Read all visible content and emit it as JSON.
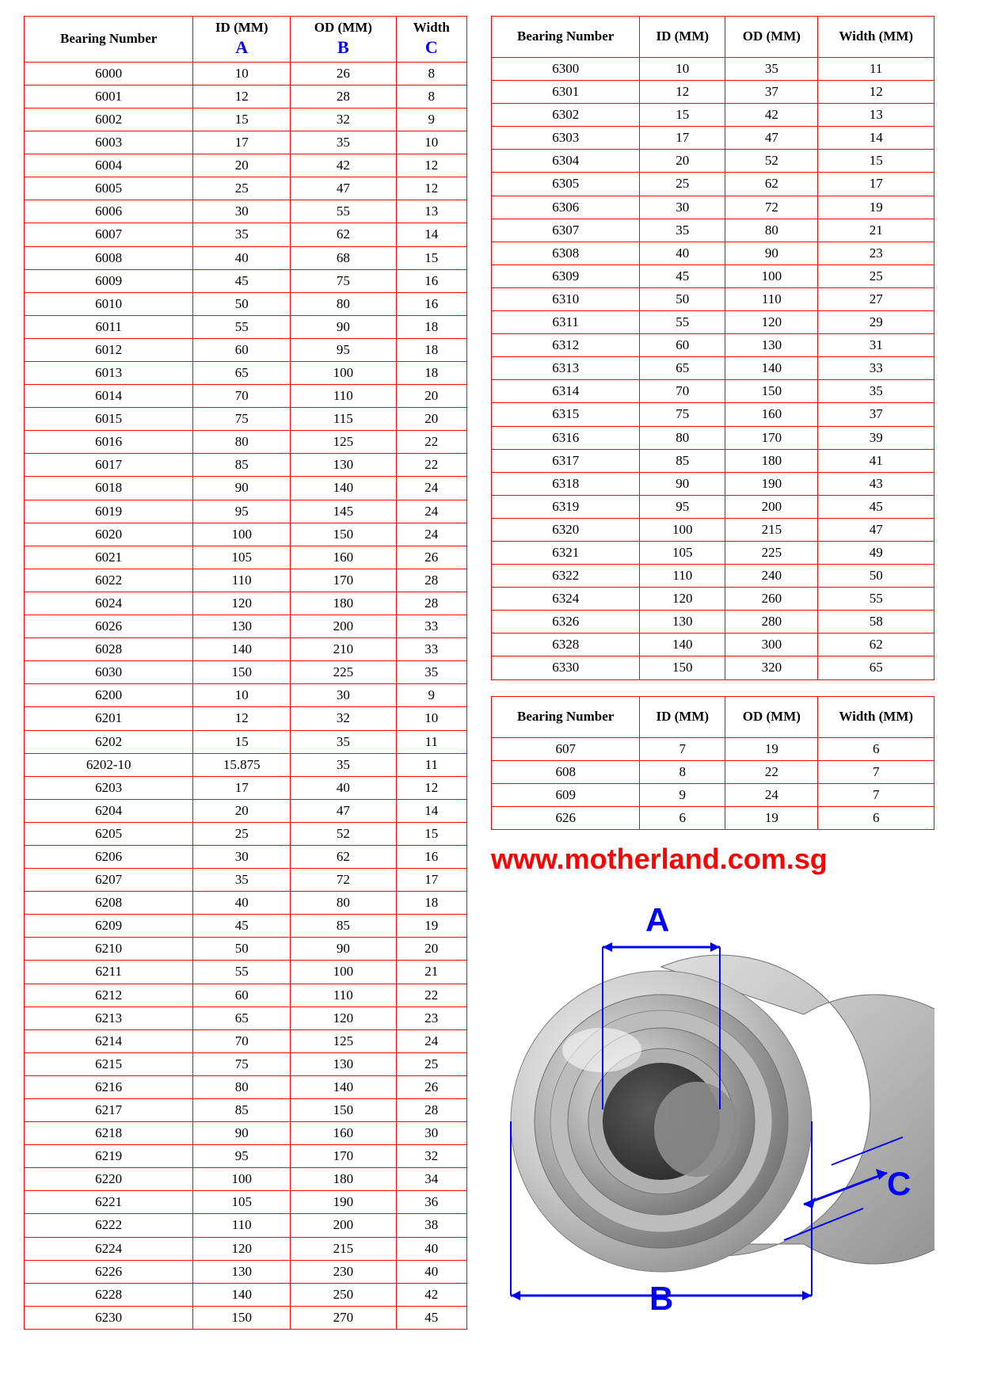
{
  "colors": {
    "table_border": "#ff0000",
    "text": "#000000",
    "accent_blue": "#0000ff",
    "website_red": "#ff0000",
    "background": "#ffffff",
    "bearing_outer": "#c9c9c9",
    "bearing_mid": "#a3a3a3",
    "bearing_inner": "#6f6f6f",
    "bearing_hole": "#3a3a3a",
    "bearing_hilite": "#f2f2f2"
  },
  "headers_main": {
    "c1": "Bearing Number",
    "c2": "ID (MM)",
    "c2_sub": "A",
    "c3": "OD (MM)",
    "c3_sub": "B",
    "c4": "Width",
    "c4_sub": "C"
  },
  "headers_simple": {
    "c1": "Bearing Number",
    "c2": "ID (MM)",
    "c3": "OD (MM)",
    "c4": "Width (MM)"
  },
  "website": "www.motherland.com.sg",
  "diagram_labels": {
    "A": "A",
    "B": "B",
    "C": "C"
  },
  "table_left": {
    "columns": [
      "Bearing Number",
      "ID (MM)",
      "OD (MM)",
      "Width"
    ],
    "rows": [
      [
        "6000",
        "10",
        "26",
        "8"
      ],
      [
        "6001",
        "12",
        "28",
        "8"
      ],
      [
        "6002",
        "15",
        "32",
        "9"
      ],
      [
        "6003",
        "17",
        "35",
        "10"
      ],
      [
        "6004",
        "20",
        "42",
        "12"
      ],
      [
        "6005",
        "25",
        "47",
        "12"
      ],
      [
        "6006",
        "30",
        "55",
        "13"
      ],
      [
        "6007",
        "35",
        "62",
        "14"
      ],
      [
        "6008",
        "40",
        "68",
        "15"
      ],
      [
        "6009",
        "45",
        "75",
        "16"
      ],
      [
        "6010",
        "50",
        "80",
        "16"
      ],
      [
        "6011",
        "55",
        "90",
        "18"
      ],
      [
        "6012",
        "60",
        "95",
        "18"
      ],
      [
        "6013",
        "65",
        "100",
        "18"
      ],
      [
        "6014",
        "70",
        "110",
        "20"
      ],
      [
        "6015",
        "75",
        "115",
        "20"
      ],
      [
        "6016",
        "80",
        "125",
        "22"
      ],
      [
        "6017",
        "85",
        "130",
        "22"
      ],
      [
        "6018",
        "90",
        "140",
        "24"
      ],
      [
        "6019",
        "95",
        "145",
        "24"
      ],
      [
        "6020",
        "100",
        "150",
        "24"
      ],
      [
        "6021",
        "105",
        "160",
        "26"
      ],
      [
        "6022",
        "110",
        "170",
        "28"
      ],
      [
        "6024",
        "120",
        "180",
        "28"
      ],
      [
        "6026",
        "130",
        "200",
        "33"
      ],
      [
        "6028",
        "140",
        "210",
        "33"
      ],
      [
        "6030",
        "150",
        "225",
        "35"
      ],
      [
        "6200",
        "10",
        "30",
        "9"
      ],
      [
        "6201",
        "12",
        "32",
        "10"
      ],
      [
        "6202",
        "15",
        "35",
        "11"
      ],
      [
        "6202-10",
        "15.875",
        "35",
        "11"
      ],
      [
        "6203",
        "17",
        "40",
        "12"
      ],
      [
        "6204",
        "20",
        "47",
        "14"
      ],
      [
        "6205",
        "25",
        "52",
        "15"
      ],
      [
        "6206",
        "30",
        "62",
        "16"
      ],
      [
        "6207",
        "35",
        "72",
        "17"
      ],
      [
        "6208",
        "40",
        "80",
        "18"
      ],
      [
        "6209",
        "45",
        "85",
        "19"
      ],
      [
        "6210",
        "50",
        "90",
        "20"
      ],
      [
        "6211",
        "55",
        "100",
        "21"
      ],
      [
        "6212",
        "60",
        "110",
        "22"
      ],
      [
        "6213",
        "65",
        "120",
        "23"
      ],
      [
        "6214",
        "70",
        "125",
        "24"
      ],
      [
        "6215",
        "75",
        "130",
        "25"
      ],
      [
        "6216",
        "80",
        "140",
        "26"
      ],
      [
        "6217",
        "85",
        "150",
        "28"
      ],
      [
        "6218",
        "90",
        "160",
        "30"
      ],
      [
        "6219",
        "95",
        "170",
        "32"
      ],
      [
        "6220",
        "100",
        "180",
        "34"
      ],
      [
        "6221",
        "105",
        "190",
        "36"
      ],
      [
        "6222",
        "110",
        "200",
        "38"
      ],
      [
        "6224",
        "120",
        "215",
        "40"
      ],
      [
        "6226",
        "130",
        "230",
        "40"
      ],
      [
        "6228",
        "140",
        "250",
        "42"
      ],
      [
        "6230",
        "150",
        "270",
        "45"
      ]
    ]
  },
  "table_right_top": {
    "columns": [
      "Bearing Number",
      "ID (MM)",
      "OD (MM)",
      "Width (MM)"
    ],
    "rows": [
      [
        "6300",
        "10",
        "35",
        "11"
      ],
      [
        "6301",
        "12",
        "37",
        "12"
      ],
      [
        "6302",
        "15",
        "42",
        "13"
      ],
      [
        "6303",
        "17",
        "47",
        "14"
      ],
      [
        "6304",
        "20",
        "52",
        "15"
      ],
      [
        "6305",
        "25",
        "62",
        "17"
      ],
      [
        "6306",
        "30",
        "72",
        "19"
      ],
      [
        "6307",
        "35",
        "80",
        "21"
      ],
      [
        "6308",
        "40",
        "90",
        "23"
      ],
      [
        "6309",
        "45",
        "100",
        "25"
      ],
      [
        "6310",
        "50",
        "110",
        "27"
      ],
      [
        "6311",
        "55",
        "120",
        "29"
      ],
      [
        "6312",
        "60",
        "130",
        "31"
      ],
      [
        "6313",
        "65",
        "140",
        "33"
      ],
      [
        "6314",
        "70",
        "150",
        "35"
      ],
      [
        "6315",
        "75",
        "160",
        "37"
      ],
      [
        "6316",
        "80",
        "170",
        "39"
      ],
      [
        "6317",
        "85",
        "180",
        "41"
      ],
      [
        "6318",
        "90",
        "190",
        "43"
      ],
      [
        "6319",
        "95",
        "200",
        "45"
      ],
      [
        "6320",
        "100",
        "215",
        "47"
      ],
      [
        "6321",
        "105",
        "225",
        "49"
      ],
      [
        "6322",
        "110",
        "240",
        "50"
      ],
      [
        "6324",
        "120",
        "260",
        "55"
      ],
      [
        "6326",
        "130",
        "280",
        "58"
      ],
      [
        "6328",
        "140",
        "300",
        "62"
      ],
      [
        "6330",
        "150",
        "320",
        "65"
      ]
    ]
  },
  "table_right_bottom": {
    "columns": [
      "Bearing Number",
      "ID (MM)",
      "OD (MM)",
      "Width (MM)"
    ],
    "rows": [
      [
        "607",
        "7",
        "19",
        "6"
      ],
      [
        "608",
        "8",
        "22",
        "7"
      ],
      [
        "609",
        "9",
        "24",
        "7"
      ],
      [
        "626",
        "6",
        "19",
        "6"
      ]
    ]
  }
}
